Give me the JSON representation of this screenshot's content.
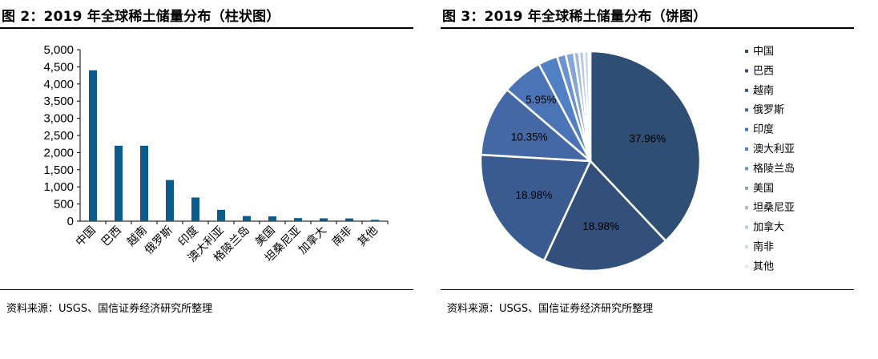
{
  "left_panel": {
    "title": "图 2：2019 年全球稀土储量分布（柱状图）",
    "source": "资料来源：USGS、国信证券经济研究所整理"
  },
  "right_panel": {
    "title": "图 3：2019 年全球稀土储量分布（饼图）",
    "source": "资料来源：USGS、国信证券经济研究所整理"
  },
  "chart_data": [
    {
      "type": "bar",
      "categories": [
        "中国",
        "巴西",
        "越南",
        "俄罗斯",
        "印度",
        "澳大利亚",
        "格陵兰岛",
        "美国",
        "坦桑尼亚",
        "加拿大",
        "南非",
        "其他"
      ],
      "values": [
        4400,
        2200,
        2200,
        1200,
        690,
        330,
        150,
        140,
        89,
        83,
        79,
        40
      ],
      "ylim": [
        0,
        5000
      ],
      "yticks": [
        "0",
        "500",
        "1,000",
        "1,500",
        "2,000",
        "2,500",
        "3,000",
        "3,500",
        "4,000",
        "4,500",
        "5,000"
      ],
      "grid": false,
      "bar_color": "#0b5a8c"
    },
    {
      "type": "pie",
      "labels": [
        "中国",
        "巴西",
        "越南",
        "俄罗斯",
        "印度",
        "澳大利亚",
        "格陵兰岛",
        "美国",
        "坦桑尼亚",
        "加拿大",
        "南非",
        "其他"
      ],
      "values": [
        37.96,
        18.98,
        18.98,
        10.35,
        5.95,
        2.85,
        1.29,
        1.21,
        0.77,
        0.72,
        0.68,
        0.26
      ],
      "value_labels": [
        "37.96%",
        "18.98%",
        "18.98%",
        "10.35%",
        "5.95%",
        "",
        "",
        "",
        "",
        "",
        "",
        ""
      ],
      "colors": [
        "#2f4e73",
        "#334f7c",
        "#3a5b90",
        "#4468a4",
        "#4a74b5",
        "#5280c4",
        "#6b93cf",
        "#86a6d8",
        "#a0b9e0",
        "#b8cae6",
        "#cdd8ec",
        "#e1e7f2"
      ],
      "legend": "right"
    }
  ]
}
